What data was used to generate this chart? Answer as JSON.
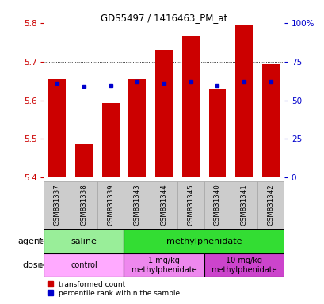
{
  "title": "GDS5497 / 1416463_PM_at",
  "samples": [
    "GSM831337",
    "GSM831338",
    "GSM831339",
    "GSM831343",
    "GSM831344",
    "GSM831345",
    "GSM831340",
    "GSM831341",
    "GSM831342"
  ],
  "red_values": [
    5.655,
    5.487,
    5.593,
    5.655,
    5.73,
    5.767,
    5.628,
    5.795,
    5.693
  ],
  "blue_values": [
    5.645,
    5.635,
    5.637,
    5.648,
    5.645,
    5.648,
    5.638,
    5.648,
    5.648
  ],
  "ylim_left": [
    5.4,
    5.8
  ],
  "ylim_right": [
    0,
    100
  ],
  "yticks_left": [
    5.4,
    5.5,
    5.6,
    5.7,
    5.8
  ],
  "yticks_right": [
    0,
    25,
    50,
    75,
    100
  ],
  "ytick_right_labels": [
    "0",
    "25",
    "50",
    "75",
    "100%"
  ],
  "bar_color": "#cc0000",
  "blue_color": "#0000cc",
  "bar_bottom": 5.4,
  "agent_groups": [
    {
      "label": "saline",
      "span": [
        0,
        3
      ],
      "color": "#99ee99"
    },
    {
      "label": "methylphenidate",
      "span": [
        3,
        9
      ],
      "color": "#33dd33"
    }
  ],
  "dose_groups": [
    {
      "label": "control",
      "span": [
        0,
        3
      ],
      "color": "#ffaaff"
    },
    {
      "label": "1 mg/kg\nmethylphenidate",
      "span": [
        3,
        6
      ],
      "color": "#ee88ee"
    },
    {
      "label": "10 mg/kg\nmethylphenidate",
      "span": [
        6,
        9
      ],
      "color": "#cc44cc"
    }
  ],
  "legend_red": "transformed count",
  "legend_blue": "percentile rank within the sample",
  "bar_width": 0.65,
  "tick_color_left": "#cc0000",
  "tick_color_right": "#0000cc",
  "background_color": "#ffffff",
  "xtick_bg": "#cccccc",
  "xtick_border": "#aaaaaa"
}
